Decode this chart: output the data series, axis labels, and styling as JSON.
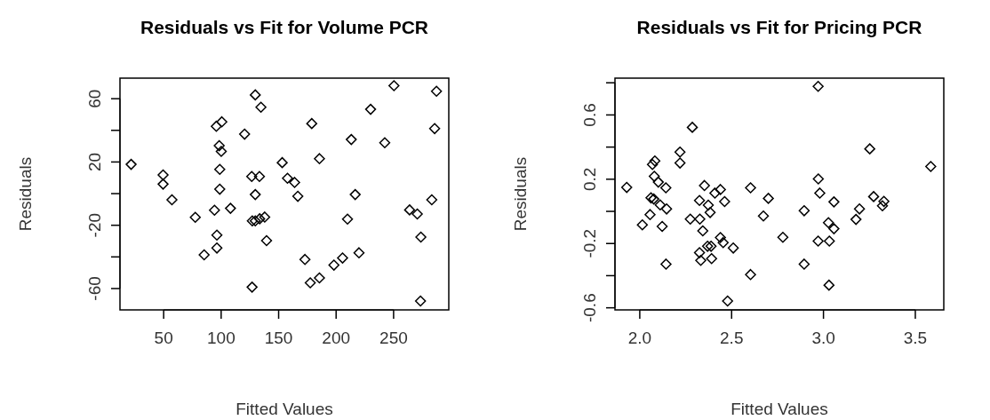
{
  "chart_data": [
    {
      "type": "scatter",
      "title": "Residuals vs Fit for Volume PCR",
      "xlabel": "Fitted Values",
      "ylabel": "Residuals",
      "marker": "diamond",
      "grid": false,
      "xlim": [
        12,
        298
      ],
      "ylim": [
        -73.5,
        73
      ],
      "xticks": [
        50,
        100,
        150,
        200,
        250
      ],
      "yticks": [
        -60,
        {
          "value": -40,
          "label": null
        },
        -20,
        {
          "value": 0,
          "label": null
        },
        20,
        {
          "value": 40,
          "label": null
        },
        60
      ],
      "series": [
        {
          "color": "#000000",
          "x": [
            21.7,
            49.5,
            49.5,
            57.2,
            77.5,
            85.2,
            94.2,
            96.3,
            96.3,
            95.8,
            100.6,
            98.3,
            100.1,
            98.8,
            98.8,
            108.1,
            120.4,
            129.7,
            134.6,
            126.6,
            133.3,
            129.7,
            127.1,
            129.7,
            133.5,
            137.9,
            139.5,
            126.9,
            153.1,
            157.7,
            163.9,
            166.7,
            178.8,
            185.5,
            172.9,
            177.5,
            185.5,
            198.1,
            205.6,
            209.9,
            213.2,
            216.6,
            219.9,
            230.0,
            242.3,
            250.3,
            263.9,
            270.6,
            273.7,
            283.2,
            285.7,
            287.3,
            273.4
          ],
          "values": [
            18.5,
            11.8,
            6.0,
            -3.9,
            -15.0,
            -38.7,
            -10.5,
            -26.2,
            -34.4,
            42.6,
            45.4,
            30.3,
            26.7,
            15.3,
            2.8,
            -9.3,
            37.6,
            62.4,
            54.6,
            10.8,
            10.8,
            -0.6,
            -17.2,
            -17.2,
            -15.9,
            -14.8,
            -29.7,
            -59.1,
            19.6,
            9.7,
            7.1,
            -1.7,
            44.3,
            22.1,
            -41.6,
            -56.4,
            -53.3,
            -45.2,
            -40.7,
            -16.1,
            34.2,
            -0.6,
            -37.4,
            53.3,
            32.2,
            68.2,
            -10.3,
            -12.9,
            -27.5,
            -3.9,
            41.1,
            64.7,
            -67.9
          ]
        }
      ]
    },
    {
      "type": "scatter",
      "title": "Residuals vs Fit for Pricing PCR",
      "xlabel": "Fitted Values",
      "ylabel": "Residuals",
      "marker": "diamond",
      "grid": false,
      "xlim": [
        1.865,
        3.655
      ],
      "ylim": [
        -0.613,
        0.829
      ],
      "xticks": [
        {
          "value": 2.0,
          "label": "2.0"
        },
        2.5,
        {
          "value": 3.0,
          "label": "3.0"
        },
        3.5
      ],
      "yticks": [
        -0.6,
        {
          "value": -0.4,
          "label": null
        },
        -0.2,
        {
          "value": 0,
          "label": null
        },
        0.2,
        {
          "value": 0.4,
          "label": null
        },
        0.6,
        {
          "value": 0.8,
          "label": null
        }
      ],
      "series": [
        {
          "color": "#000000",
          "x": [
            1.929,
            2.014,
            2.056,
            2.061,
            2.076,
            2.069,
            2.082,
            2.079,
            2.101,
            2.111,
            2.122,
            2.142,
            2.146,
            2.143,
            2.219,
            2.219,
            2.286,
            2.275,
            2.325,
            2.327,
            2.343,
            2.352,
            2.373,
            2.383,
            2.325,
            2.332,
            2.369,
            2.388,
            2.391,
            2.409,
            2.439,
            2.462,
            2.439,
            2.454,
            2.509,
            2.478,
            2.603,
            2.7,
            2.673,
            2.779,
            2.603,
            2.895,
            2.895,
            2.971,
            2.972,
            2.98,
            2.971,
            3.032,
            3.027,
            3.057,
            3.057,
            3.03,
            3.177,
            3.196,
            3.252,
            3.273,
            3.329,
            3.321,
            3.584
          ],
          "values": [
            0.149,
            -0.084,
            -0.02,
            0.084,
            0.077,
            0.292,
            0.314,
            0.218,
            0.182,
            0.04,
            -0.094,
            0.147,
            0.015,
            -0.328,
            0.369,
            0.301,
            0.523,
            -0.048,
            0.068,
            -0.048,
            -0.121,
            0.161,
            0.039,
            -0.007,
            -0.257,
            -0.305,
            -0.217,
            -0.217,
            -0.294,
            0.114,
            0.136,
            0.061,
            -0.163,
            -0.194,
            -0.228,
            -0.558,
            0.147,
            0.081,
            -0.029,
            -0.161,
            -0.393,
            0.004,
            -0.328,
            0.778,
            0.202,
            0.114,
            -0.185,
            -0.185,
            -0.07,
            -0.108,
            0.059,
            -0.459,
            -0.05,
            0.015,
            0.389,
            0.092,
            0.062,
            0.035,
            0.279
          ]
        }
      ]
    }
  ]
}
